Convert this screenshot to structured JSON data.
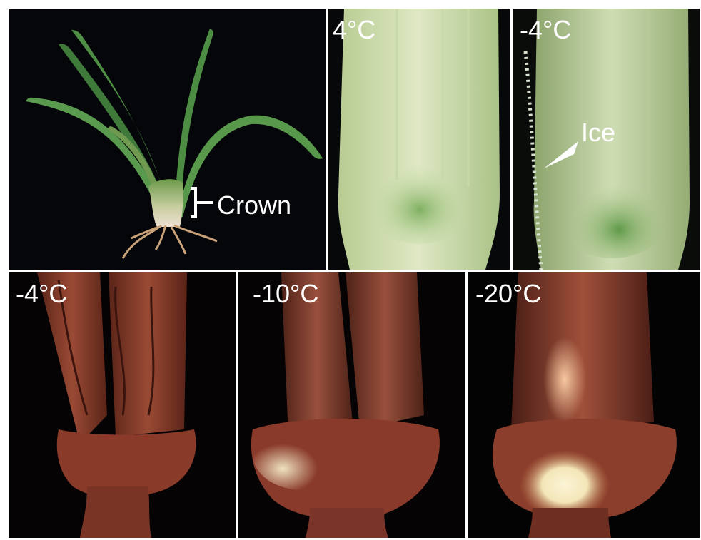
{
  "figure": {
    "panels": [
      {
        "id": "a",
        "temperature_label": "",
        "annotation": "Crown"
      },
      {
        "id": "b",
        "temperature_label": "4°C"
      },
      {
        "id": "c",
        "temperature_label": "-4°C",
        "annotation": "Ice"
      },
      {
        "id": "d",
        "temperature_label": "-4°C"
      },
      {
        "id": "e",
        "temperature_label": "-10°C"
      },
      {
        "id": "f",
        "temperature_label": "-20°C"
      }
    ]
  },
  "colors": {
    "background": "#05070a",
    "separator": "#ffffff",
    "label": "#ffffff",
    "leaf_green": "#4f8f45",
    "crown_tissue_green": "#cfe0b0",
    "stained_tissue": "#8a3a28",
    "damaged_tissue": "#f3e6b8"
  }
}
